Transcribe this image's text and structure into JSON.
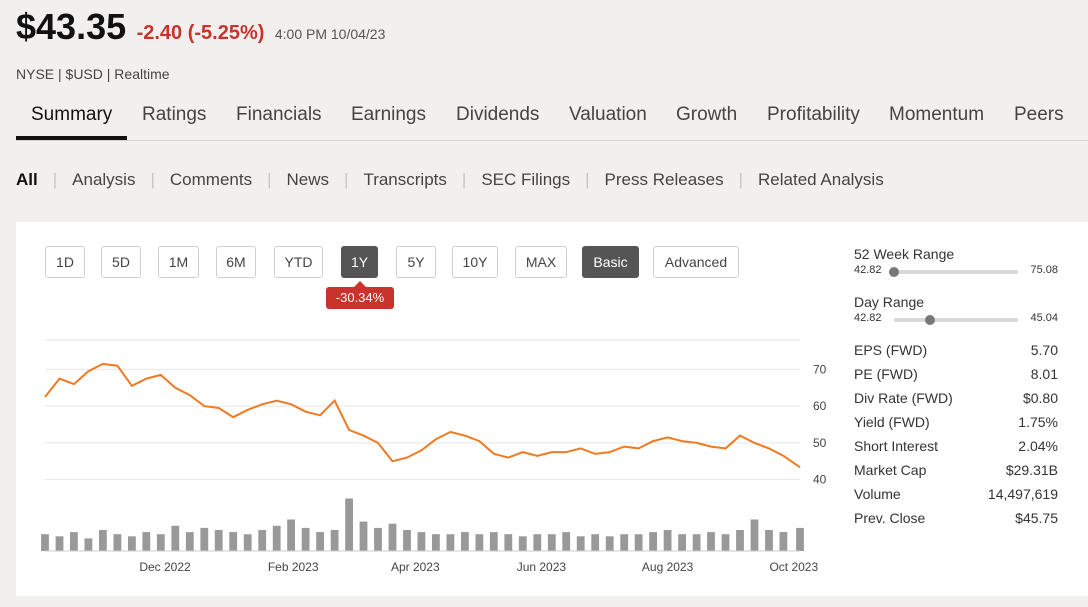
{
  "quote": {
    "price": "$43.35",
    "change": "-2.40 (-5.25%)",
    "time": "4:00 PM 10/04/23",
    "exchange": "NYSE | $USD | Realtime"
  },
  "main_tabs": [
    "Summary",
    "Ratings",
    "Financials",
    "Earnings",
    "Dividends",
    "Valuation",
    "Growth",
    "Profitability",
    "Momentum",
    "Peers"
  ],
  "sub_tabs": [
    "All",
    "Analysis",
    "Comments",
    "News",
    "Transcripts",
    "SEC Filings",
    "Press Releases",
    "Related Analysis"
  ],
  "range_buttons": [
    "1D",
    "5D",
    "1M",
    "6M",
    "YTD",
    "1Y",
    "5Y",
    "10Y",
    "MAX"
  ],
  "active_range": "1Y",
  "mode_buttons": [
    "Basic",
    "Advanced"
  ],
  "active_mode": "Basic",
  "period_change": "-30.34%",
  "colors": {
    "line": "#f07a22",
    "negative": "#c8342c",
    "volume": "#999999"
  },
  "stats": {
    "week52": {
      "label": "52 Week Range",
      "low": "42.82",
      "high": "75.08",
      "position": 0.0
    },
    "day": {
      "label": "Day Range",
      "low": "42.82",
      "high": "45.04",
      "position": 0.29
    },
    "rows": [
      {
        "label": "EPS (FWD)",
        "value": "5.70"
      },
      {
        "label": "PE (FWD)",
        "value": "8.01"
      },
      {
        "label": "Div Rate (FWD)",
        "value": "$0.80"
      },
      {
        "label": "Yield (FWD)",
        "value": "1.75%"
      },
      {
        "label": "Short Interest",
        "value": "2.04%"
      },
      {
        "label": "Market Cap",
        "value": "$29.31B"
      },
      {
        "label": "Volume",
        "value": "14,497,619"
      },
      {
        "label": "Prev. Close",
        "value": "$45.75"
      }
    ]
  },
  "chart_data": {
    "type": "line",
    "title": "",
    "xlabel": "",
    "ylabel": "",
    "x_ticks": [
      "Dec 2022",
      "Feb 2023",
      "Apr 2023",
      "Jun 2023",
      "Aug 2023",
      "Oct 2023"
    ],
    "y_ticks": [
      40,
      50,
      60,
      70
    ],
    "ylim": [
      38,
      78
    ],
    "grid": true,
    "x": [
      "2022-10-04",
      "2022-10-11",
      "2022-10-18",
      "2022-10-25",
      "2022-11-01",
      "2022-11-08",
      "2022-11-15",
      "2022-11-22",
      "2022-11-29",
      "2022-12-06",
      "2022-12-13",
      "2022-12-20",
      "2022-12-27",
      "2023-01-03",
      "2023-01-10",
      "2023-01-17",
      "2023-01-24",
      "2023-01-31",
      "2023-02-07",
      "2023-02-14",
      "2023-02-21",
      "2023-02-28",
      "2023-03-07",
      "2023-03-14",
      "2023-03-21",
      "2023-03-28",
      "2023-04-04",
      "2023-04-11",
      "2023-04-18",
      "2023-04-25",
      "2023-05-02",
      "2023-05-09",
      "2023-05-16",
      "2023-05-23",
      "2023-05-30",
      "2023-06-06",
      "2023-06-13",
      "2023-06-20",
      "2023-06-27",
      "2023-07-04",
      "2023-07-11",
      "2023-07-18",
      "2023-07-25",
      "2023-08-01",
      "2023-08-08",
      "2023-08-15",
      "2023-08-22",
      "2023-08-29",
      "2023-09-05",
      "2023-09-12",
      "2023-09-19",
      "2023-09-26",
      "2023-10-04"
    ],
    "series": [
      {
        "values": [
          62.5,
          67.5,
          66.0,
          69.5,
          71.5,
          71.0,
          65.5,
          67.5,
          68.5,
          65.0,
          63.0,
          60.0,
          59.5,
          57.0,
          59.0,
          60.5,
          61.5,
          60.5,
          58.5,
          57.5,
          61.5,
          53.5,
          52.0,
          50.0,
          45.0,
          46.0,
          48.0,
          51.0,
          53.0,
          52.0,
          50.5,
          47.0,
          46.0,
          47.5,
          46.5,
          47.5,
          47.5,
          48.5,
          47.0,
          47.5,
          49.0,
          48.5,
          50.5,
          51.5,
          50.5,
          50.0,
          49.0,
          48.5,
          52.0,
          50.0,
          48.5,
          46.5,
          43.35
        ]
      }
    ],
    "volume_values": [
      8,
      7,
      9,
      6,
      10,
      8,
      7,
      9,
      8,
      12,
      9,
      11,
      10,
      9,
      8,
      10,
      12,
      15,
      11,
      9,
      10,
      25,
      14,
      11,
      13,
      10,
      9,
      8,
      8,
      9,
      8,
      9,
      8,
      7,
      8,
      8,
      9,
      7,
      8,
      7,
      8,
      8,
      9,
      10,
      8,
      8,
      9,
      8,
      10,
      15,
      10,
      9,
      11
    ]
  }
}
